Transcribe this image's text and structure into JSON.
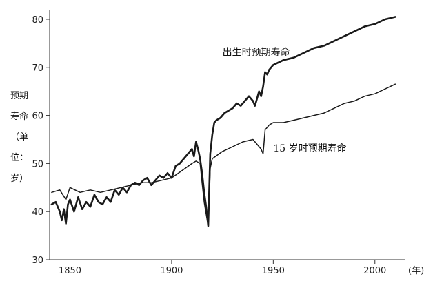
{
  "chart_data": {
    "type": "line",
    "xlim": [
      1840,
      2015
    ],
    "ylim": [
      30,
      82
    ],
    "xticks": [
      1850,
      1900,
      1950,
      2000
    ],
    "yticks": [
      30,
      40,
      50,
      60,
      70,
      80
    ],
    "xtick_labels": [
      "1850",
      "1900",
      "1950",
      "2000"
    ],
    "ytick_labels": [
      "30",
      "40",
      "50",
      "60",
      "70",
      "80"
    ],
    "xunit": "(年)",
    "ylabel_lines": [
      "预期",
      "寿命",
      "（单",
      "位：",
      "岁）"
    ],
    "grid": false,
    "series": [
      {
        "name": "出生时预期寿命",
        "label_anchor": [
          1925,
          72.5
        ],
        "x": [
          1841,
          1843,
          1845,
          1846,
          1847,
          1848,
          1849,
          1850,
          1852,
          1854,
          1856,
          1858,
          1860,
          1862,
          1864,
          1866,
          1868,
          1870,
          1872,
          1874,
          1876,
          1878,
          1880,
          1882,
          1884,
          1886,
          1888,
          1890,
          1892,
          1894,
          1896,
          1898,
          1900,
          1902,
          1904,
          1906,
          1908,
          1910,
          1911,
          1912,
          1913,
          1914,
          1915,
          1916,
          1917,
          1918,
          1919,
          1920,
          1921,
          1922,
          1924,
          1926,
          1928,
          1930,
          1932,
          1934,
          1936,
          1938,
          1940,
          1941,
          1942,
          1943,
          1944,
          1945,
          1946,
          1947,
          1948,
          1950,
          1955,
          1960,
          1965,
          1970,
          1975,
          1980,
          1985,
          1990,
          1995,
          2000,
          2005,
          2010
        ],
        "values": [
          41.5,
          42.0,
          40.0,
          38.2,
          40.5,
          37.5,
          41.5,
          42.5,
          40.0,
          43.0,
          40.5,
          42.0,
          41.0,
          43.5,
          42.0,
          41.5,
          43.0,
          42.0,
          44.5,
          43.5,
          45.0,
          44.0,
          45.5,
          46.0,
          45.5,
          46.5,
          47.0,
          45.5,
          46.5,
          47.5,
          47.0,
          48.0,
          47.0,
          49.5,
          50.0,
          51.0,
          52.0,
          53.0,
          51.5,
          54.5,
          53.0,
          51.0,
          48.0,
          44.0,
          41.0,
          37.0,
          52.0,
          56.0,
          58.5,
          59.0,
          59.5,
          60.5,
          61.0,
          61.5,
          62.5,
          62.0,
          63.0,
          64.0,
          63.0,
          62.0,
          63.5,
          65.0,
          64.0,
          66.0,
          69.0,
          68.5,
          69.5,
          70.5,
          71.5,
          72.0,
          73.0,
          74.0,
          74.5,
          75.5,
          76.5,
          77.5,
          78.5,
          79.0,
          80.0,
          80.5
        ],
        "color": "#1a1a1a"
      },
      {
        "name": "15 岁时预期寿命",
        "label_anchor": [
          1950,
          52.5
        ],
        "x": [
          1841,
          1845,
          1848,
          1850,
          1855,
          1860,
          1865,
          1870,
          1875,
          1880,
          1885,
          1890,
          1895,
          1900,
          1905,
          1910,
          1912,
          1914,
          1915,
          1916,
          1917,
          1918,
          1919,
          1920,
          1925,
          1930,
          1935,
          1940,
          1944,
          1945,
          1946,
          1947,
          1948,
          1950,
          1955,
          1960,
          1965,
          1970,
          1975,
          1980,
          1985,
          1990,
          1995,
          2000,
          2005,
          2010
        ],
        "values": [
          44.0,
          44.5,
          42.5,
          45.0,
          44.0,
          44.5,
          44.0,
          44.5,
          45.0,
          45.5,
          46.0,
          46.0,
          46.5,
          47.0,
          48.5,
          50.0,
          50.5,
          50.0,
          46.0,
          42.0,
          39.5,
          37.0,
          49.0,
          51.0,
          52.5,
          53.5,
          54.5,
          55.0,
          53.0,
          52.0,
          57.0,
          57.5,
          58.0,
          58.5,
          58.5,
          59.0,
          59.5,
          60.0,
          60.5,
          61.5,
          62.5,
          63.0,
          64.0,
          64.5,
          65.5,
          66.5
        ],
        "color": "#1a1a1a"
      }
    ]
  }
}
